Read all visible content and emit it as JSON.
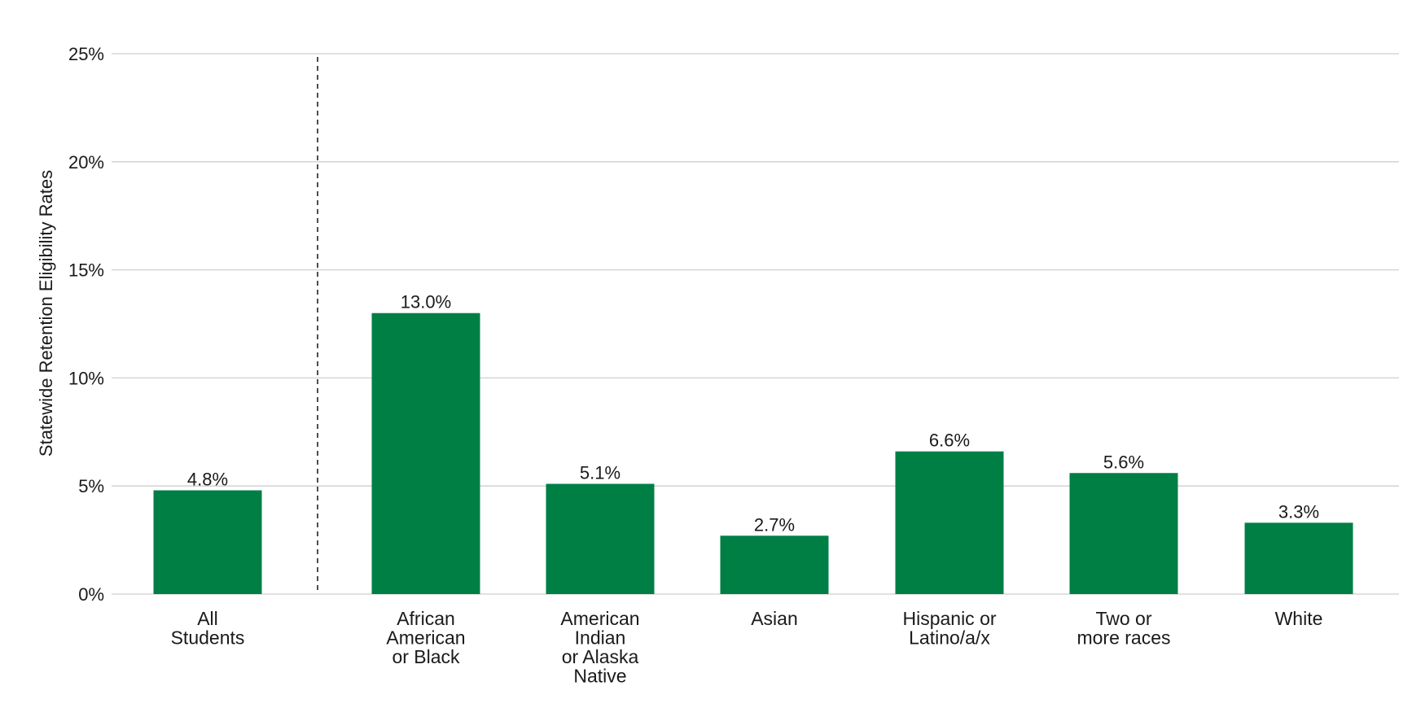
{
  "chart_data": {
    "type": "bar",
    "title": "",
    "xlabel": "",
    "ylabel": "Statewide Retention Eligibility Rates",
    "ylim": [
      0,
      25
    ],
    "yticks": [
      0,
      5,
      10,
      15,
      20,
      25
    ],
    "ytick_labels": [
      "0%",
      "5%",
      "10%",
      "15%",
      "20%",
      "25%"
    ],
    "grid": true,
    "legend": "none",
    "separator_after_index": 0,
    "bar_color": "#007f45",
    "categories": [
      [
        "All",
        "Students"
      ],
      [
        "African",
        "American",
        "or Black"
      ],
      [
        "American",
        "Indian",
        "or Alaska",
        "Native"
      ],
      [
        "Asian"
      ],
      [
        "Hispanic or",
        "Latino/a/x"
      ],
      [
        "Two or",
        "more races"
      ],
      [
        "White"
      ]
    ],
    "values": [
      4.8,
      13.0,
      5.1,
      2.7,
      6.6,
      5.6,
      3.3
    ],
    "value_labels": [
      "4.8%",
      "13.0%",
      "5.1%",
      "2.7%",
      "6.6%",
      "5.6%",
      "3.3%"
    ]
  }
}
